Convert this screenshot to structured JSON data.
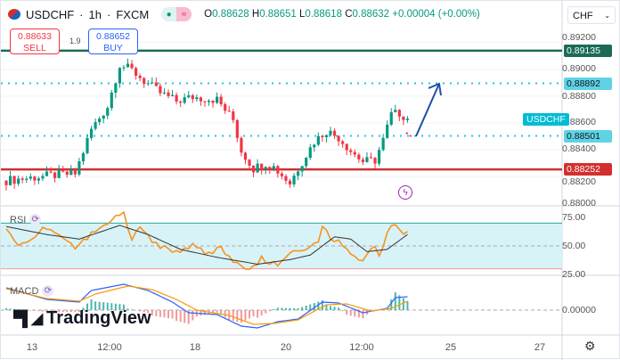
{
  "header": {
    "symbol": "USDCHF",
    "interval": "1h",
    "exchange": "FXCM",
    "sep": "·",
    "open": "0.88628",
    "high": "0.88651",
    "low": "0.88618",
    "close": "0.88632",
    "change": "+0.00004 (+0.00%)"
  },
  "trade": {
    "sell_price": "0.88633",
    "sell_label": "SELL",
    "spread": "1.9",
    "buy_price": "0.88652",
    "buy_label": "BUY"
  },
  "currency": "CHF",
  "price_axis": [
    "0.89200",
    "0.89000",
    "0.88800",
    "0.88600",
    "0.88400",
    "0.88200",
    "0.88000"
  ],
  "levels": [
    {
      "price": "0.89135",
      "color": "#1b6b57",
      "style": "solid"
    },
    {
      "price": "0.88892",
      "color": "#26c6da",
      "style": "dotted"
    },
    {
      "price": "0.88501",
      "color": "#26c6da",
      "style": "dotted"
    },
    {
      "price": "0.88252",
      "color": "#d32f2f",
      "style": "solid"
    }
  ],
  "symbol_tag": "USDCHF",
  "rsi": {
    "label": "RSI",
    "axis": [
      "75.00",
      "50.00",
      "25.00"
    ]
  },
  "macd": {
    "label": "MACD",
    "axis": [
      "0.00000"
    ]
  },
  "brand": "TradingView",
  "time_axis": [
    "13",
    "12:00",
    "18",
    "20",
    "12:00",
    "25",
    "27"
  ],
  "chart_data": {
    "type": "candlestick",
    "candles": 100,
    "close_keypoints": [
      [
        0,
        0.8817
      ],
      [
        6,
        0.8819
      ],
      [
        12,
        0.8821
      ],
      [
        17,
        0.8822
      ],
      [
        21,
        0.8855
      ],
      [
        25,
        0.8872
      ],
      [
        28,
        0.8903
      ],
      [
        31,
        0.8899
      ],
      [
        34,
        0.8891
      ],
      [
        38,
        0.8882
      ],
      [
        42,
        0.8876
      ],
      [
        46,
        0.8879
      ],
      [
        52,
        0.8877
      ],
      [
        56,
        0.8862
      ],
      [
        58,
        0.8839
      ],
      [
        61,
        0.8826
      ],
      [
        64,
        0.883
      ],
      [
        66,
        0.8827
      ],
      [
        68,
        0.8821
      ],
      [
        70,
        0.8815
      ],
      [
        72,
        0.8826
      ],
      [
        76,
        0.8846
      ],
      [
        79,
        0.8854
      ],
      [
        82,
        0.8849
      ],
      [
        85,
        0.8839
      ],
      [
        88,
        0.8831
      ],
      [
        91,
        0.8832
      ],
      [
        93,
        0.8847
      ],
      [
        95,
        0.8866
      ],
      [
        97,
        0.8867
      ],
      [
        99,
        0.8863
      ]
    ],
    "rsi_keypoints": [
      [
        0,
        68
      ],
      [
        3,
        52
      ],
      [
        9,
        64
      ],
      [
        13,
        61
      ],
      [
        17,
        46
      ],
      [
        21,
        61
      ],
      [
        26,
        73
      ],
      [
        29,
        77
      ],
      [
        31,
        56
      ],
      [
        33,
        66
      ],
      [
        37,
        51
      ],
      [
        40,
        47
      ],
      [
        43,
        45
      ],
      [
        46,
        51
      ],
      [
        50,
        43
      ],
      [
        53,
        47
      ],
      [
        56,
        35
      ],
      [
        60,
        31
      ],
      [
        63,
        39
      ],
      [
        67,
        33
      ],
      [
        70,
        45
      ],
      [
        74,
        48
      ],
      [
        77,
        56
      ],
      [
        78,
        67
      ],
      [
        80,
        58
      ],
      [
        82,
        54
      ],
      [
        85,
        44
      ],
      [
        88,
        38
      ],
      [
        90,
        50
      ],
      [
        92,
        44
      ],
      [
        94,
        60
      ],
      [
        95,
        68
      ],
      [
        97,
        64
      ],
      [
        99,
        60
      ]
    ],
    "rsi_ma_keypoints": [
      [
        0,
        67
      ],
      [
        10,
        60
      ],
      [
        18,
        56
      ],
      [
        28,
        68
      ],
      [
        35,
        60
      ],
      [
        43,
        47
      ],
      [
        52,
        40
      ],
      [
        62,
        34
      ],
      [
        70,
        38
      ],
      [
        75,
        42
      ],
      [
        81,
        58
      ],
      [
        85,
        56
      ],
      [
        89,
        45
      ],
      [
        94,
        47
      ],
      [
        99,
        60
      ]
    ],
    "macd_keypoints": [
      [
        0,
        2.5
      ],
      [
        10,
        1.2
      ],
      [
        18,
        0.9
      ],
      [
        21,
        2.2
      ],
      [
        29,
        2.9
      ],
      [
        35,
        2.2
      ],
      [
        41,
        0.9
      ],
      [
        45,
        -0.3
      ],
      [
        52,
        -0.5
      ],
      [
        58,
        -1.8
      ],
      [
        62,
        -2.0
      ],
      [
        67,
        -1.3
      ],
      [
        72,
        -1.0
      ],
      [
        78,
        0.9
      ],
      [
        82,
        0.8
      ],
      [
        88,
        -0.3
      ],
      [
        94,
        0.2
      ],
      [
        96,
        1.4
      ],
      [
        99,
        1.5
      ]
    ],
    "signal_keypoints": [
      [
        0,
        2.4
      ],
      [
        10,
        1.3
      ],
      [
        18,
        1.0
      ],
      [
        22,
        1.8
      ],
      [
        30,
        2.7
      ],
      [
        36,
        2.3
      ],
      [
        42,
        1.2
      ],
      [
        47,
        0.0
      ],
      [
        55,
        -0.6
      ],
      [
        61,
        -1.6
      ],
      [
        66,
        -1.5
      ],
      [
        72,
        -1.1
      ],
      [
        79,
        0.6
      ],
      [
        84,
        0.7
      ],
      [
        90,
        -0.1
      ],
      [
        95,
        0.2
      ],
      [
        99,
        1.0
      ]
    ]
  },
  "colors": {
    "up": "#089981",
    "down": "#f23645",
    "rsi": "#f7931e",
    "rsi_ma": "#333",
    "macd": "#2962ff",
    "signal": "#ff9800",
    "band": "#d8f3f8"
  }
}
